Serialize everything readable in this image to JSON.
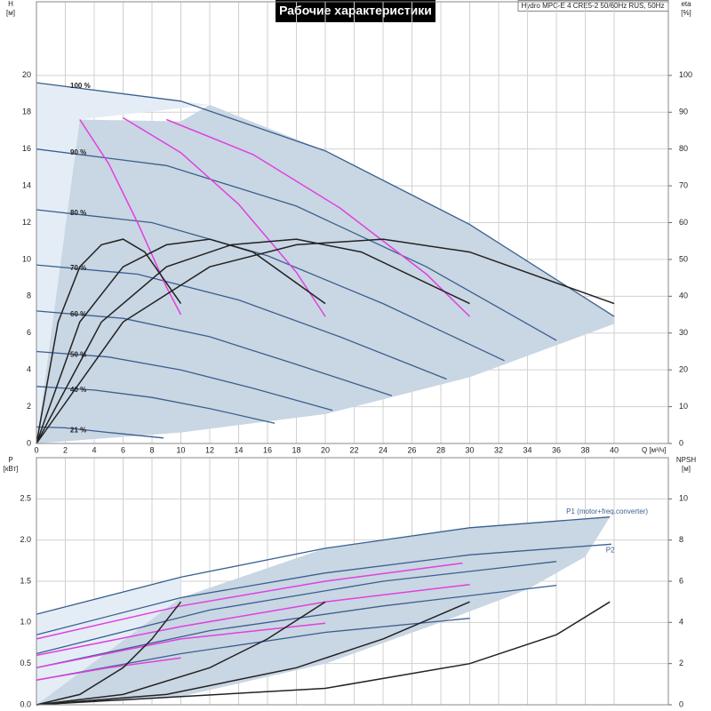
{
  "chart_data": [
    {
      "type": "line",
      "title": "Рабочие характеристики",
      "subtitle": "Hydro MPC-E 4 CRE5-2 50/60Hz RUS, 50Hz",
      "y_label": "H",
      "y_unit": "[м]",
      "y2_label": "eta",
      "y2_unit": "[%]",
      "x_label": "Q [м³/ч]",
      "xlim": [
        0,
        43.75
      ],
      "ylim": [
        0,
        24
      ],
      "y2lim": [
        0,
        120
      ],
      "xticks": [
        0,
        2,
        4,
        6,
        8,
        10,
        12,
        14,
        16,
        18,
        20,
        22,
        24,
        26,
        28,
        30,
        32,
        34,
        36,
        38,
        40
      ],
      "yticks": [
        0,
        2,
        4,
        6,
        8,
        10,
        12,
        14,
        16,
        18,
        20
      ],
      "y2ticks": [
        0,
        10,
        20,
        30,
        40,
        50,
        60,
        70,
        80,
        90,
        100
      ],
      "grid": true,
      "series": [
        {
          "color": "#e4edf6",
          "fill": true,
          "x": [
            0,
            0,
            10,
            12,
            3
          ],
          "values": [
            0,
            19.6,
            18.6,
            18.4,
            17.6
          ]
        },
        {
          "color": "#c9d6e3",
          "fill": true,
          "x": [
            0,
            3,
            10,
            12,
            20,
            30,
            40,
            40,
            30,
            20,
            10
          ],
          "values": [
            0,
            17.6,
            17.5,
            18.4,
            15.9,
            11.9,
            6.9,
            6.5,
            3.6,
            1.6,
            0.6
          ]
        },
        {
          "name": "100 %",
          "color": "#3a5f8f",
          "x": [
            0,
            10,
            20,
            30,
            40
          ],
          "values": [
            19.6,
            18.6,
            15.9,
            11.9,
            6.9
          ]
        },
        {
          "name": "90 %",
          "color": "#3a5f8f",
          "x": [
            0,
            9,
            18,
            27,
            36
          ],
          "values": [
            16.0,
            15.1,
            12.9,
            9.6,
            5.6
          ]
        },
        {
          "name": "80 %",
          "color": "#3a5f8f",
          "x": [
            0,
            8,
            16,
            24,
            32.4
          ],
          "values": [
            12.7,
            12.0,
            10.2,
            7.6,
            4.5
          ]
        },
        {
          "name": "70 %",
          "color": "#3a5f8f",
          "x": [
            0,
            7,
            14,
            21,
            28.4
          ],
          "values": [
            9.7,
            9.2,
            7.8,
            5.8,
            3.5
          ]
        },
        {
          "name": "60 %",
          "color": "#3a5f8f",
          "x": [
            0,
            6,
            12,
            18,
            24.6
          ],
          "values": [
            7.2,
            6.8,
            5.8,
            4.3,
            2.6
          ]
        },
        {
          "name": "50 %",
          "color": "#3a5f8f",
          "x": [
            0,
            5,
            10,
            15,
            20.5
          ],
          "values": [
            5.0,
            4.7,
            4.0,
            3.0,
            1.8
          ]
        },
        {
          "name": "40 %",
          "color": "#3a5f8f",
          "x": [
            0,
            4,
            8,
            12,
            16.5
          ],
          "values": [
            3.1,
            2.9,
            2.5,
            1.9,
            1.1
          ]
        },
        {
          "name": "21 %",
          "color": "#3a5f8f",
          "x": [
            0,
            2,
            5,
            8.8
          ],
          "values": [
            0.9,
            0.85,
            0.6,
            0.3
          ]
        },
        {
          "color": "#e040e0",
          "x": [
            3,
            5,
            7,
            9,
            10
          ],
          "values": [
            17.6,
            15.2,
            12,
            8.5,
            7
          ]
        },
        {
          "color": "#e040e0",
          "x": [
            6,
            10,
            14,
            18,
            20
          ],
          "values": [
            17.7,
            15.8,
            13,
            9.3,
            6.9
          ]
        },
        {
          "color": "#e040e0",
          "x": [
            9,
            15,
            21,
            27,
            30
          ],
          "values": [
            17.6,
            15.7,
            12.8,
            9.2,
            6.9
          ]
        },
        {
          "color": "#222222",
          "axis": "y2",
          "x": [
            0,
            1.5,
            3,
            4.5,
            6,
            7.5,
            10
          ],
          "values": [
            0,
            33,
            48,
            54,
            55.5,
            52,
            38
          ]
        },
        {
          "color": "#222222",
          "axis": "y2",
          "x": [
            0,
            3,
            6,
            9,
            12,
            15,
            20
          ],
          "values": [
            0,
            33,
            48,
            54,
            55.5,
            52,
            38
          ]
        },
        {
          "color": "#222222",
          "axis": "y2",
          "x": [
            0,
            4.5,
            9,
            13.5,
            18,
            22.5,
            30
          ],
          "values": [
            0,
            33,
            48,
            54,
            55.5,
            52,
            38
          ]
        },
        {
          "color": "#222222",
          "axis": "y2",
          "x": [
            0,
            6,
            12,
            18,
            24,
            30,
            40
          ],
          "values": [
            0,
            33,
            48,
            54,
            55.5,
            52,
            38
          ]
        }
      ]
    },
    {
      "type": "line",
      "y_label": "P",
      "y_unit": "[кВт]",
      "y2_label": "NPSH",
      "y2_unit": "[м]",
      "xlim": [
        0,
        43.75
      ],
      "ylim": [
        0,
        3
      ],
      "y2lim": [
        0,
        12
      ],
      "xticks": [
        0,
        2,
        4,
        6,
        8,
        10,
        12,
        14,
        16,
        18,
        20,
        22,
        24,
        26,
        28,
        30,
        32,
        34,
        36,
        38,
        40
      ],
      "yticks": [
        {
          "value": 0,
          "label": "0.0"
        },
        0.5,
        {
          "value": 1,
          "label": "1.0"
        },
        1.5,
        {
          "value": 2,
          "label": "2.0"
        },
        2.5
      ],
      "y2ticks": [
        0,
        2,
        4,
        6,
        8,
        10
      ],
      "grid": true,
      "series": [
        {
          "color": "#e4edf6",
          "fill": true,
          "x": [
            0,
            0,
            10,
            10
          ],
          "values": [
            0,
            1.1,
            1.55,
            1.3
          ]
        },
        {
          "color": "#c9d6e3",
          "fill": true,
          "x": [
            0,
            10,
            20,
            30,
            39.7,
            38,
            34,
            28,
            20,
            10
          ],
          "values": [
            0,
            1.3,
            1.9,
            2.15,
            2.28,
            1.8,
            1.4,
            1.0,
            0.5,
            0.1
          ]
        },
        {
          "name": "P1 (motor+freq.converter)",
          "color": "#3a5f8f",
          "x": [
            0,
            10,
            20,
            30,
            39.7
          ],
          "values": [
            1.1,
            1.55,
            1.9,
            2.15,
            2.28
          ]
        },
        {
          "name": "P2",
          "color": "#3a5f8f",
          "x": [
            0,
            10,
            20,
            30,
            39.8
          ],
          "values": [
            0.85,
            1.3,
            1.6,
            1.82,
            1.95
          ]
        },
        {
          "color": "#3a5f8f",
          "x": [
            0,
            12,
            24,
            36
          ],
          "values": [
            0.62,
            1.15,
            1.5,
            1.74
          ]
        },
        {
          "color": "#3a5f8f",
          "x": [
            0,
            12,
            24,
            36
          ],
          "values": [
            0.45,
            0.9,
            1.2,
            1.45
          ]
        },
        {
          "color": "#3a5f8f",
          "x": [
            0,
            10,
            20,
            30
          ],
          "values": [
            0.3,
            0.62,
            0.88,
            1.05
          ]
        },
        {
          "color": "#e040e0",
          "x": [
            0,
            10,
            20,
            29.5
          ],
          "values": [
            0.8,
            1.2,
            1.5,
            1.72
          ]
        },
        {
          "color": "#e040e0",
          "x": [
            0,
            10,
            20,
            30
          ],
          "values": [
            0.6,
            0.95,
            1.25,
            1.46
          ]
        },
        {
          "color": "#e040e0",
          "x": [
            0,
            10,
            20
          ],
          "values": [
            0.45,
            0.8,
            0.99
          ]
        },
        {
          "color": "#e040e0",
          "x": [
            0,
            5,
            10
          ],
          "values": [
            0.3,
            0.45,
            0.57
          ]
        },
        {
          "color": "#222222",
          "axis": "y2",
          "x": [
            0,
            3,
            6,
            8,
            10
          ],
          "values": [
            0,
            0.5,
            1.8,
            3.2,
            5
          ]
        },
        {
          "color": "#222222",
          "axis": "y2",
          "x": [
            0,
            6,
            12,
            16,
            20
          ],
          "values": [
            0,
            0.5,
            1.8,
            3.2,
            5
          ]
        },
        {
          "color": "#222222",
          "axis": "y2",
          "x": [
            0,
            9,
            18,
            24,
            30
          ],
          "values": [
            0,
            0.5,
            1.8,
            3.2,
            5
          ]
        },
        {
          "color": "#222222",
          "axis": "y2",
          "x": [
            0,
            20,
            30,
            36,
            39.7
          ],
          "values": [
            0,
            0.8,
            2.0,
            3.4,
            5
          ]
        }
      ]
    }
  ]
}
